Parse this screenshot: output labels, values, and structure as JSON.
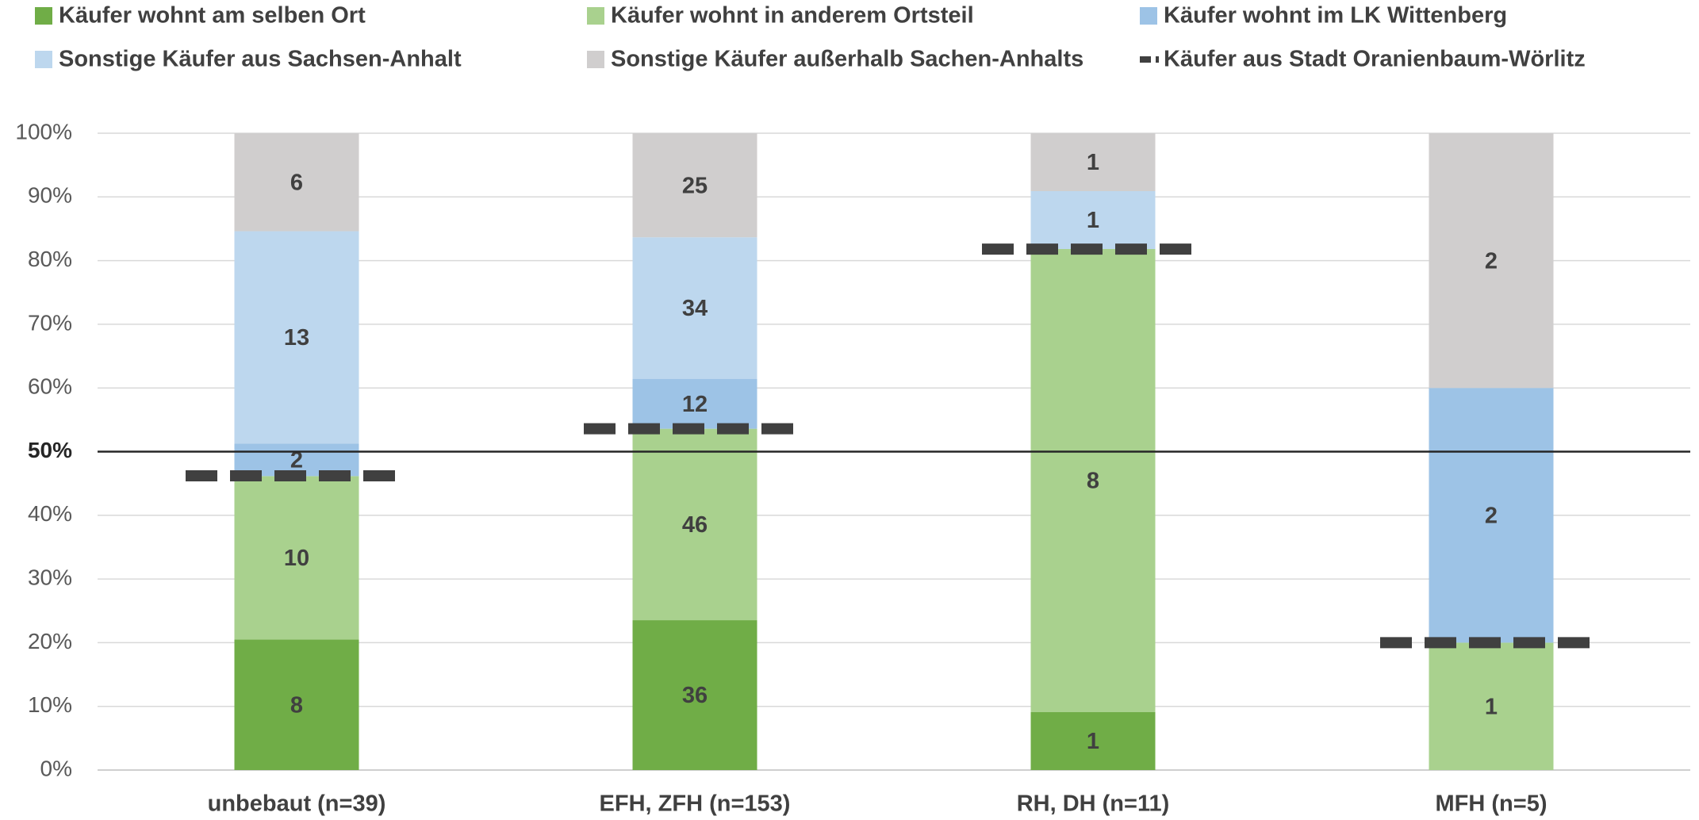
{
  "chart_data": {
    "type": "bar",
    "stack": "percent",
    "categories": [
      "unbebaut (n=39)",
      "EFH, ZFH (n=153)",
      "RH, DH (n=11)",
      "MFH (n=5)"
    ],
    "series": [
      {
        "name": "Käufer wohnt am selben Ort",
        "color": "#70ad47",
        "values": [
          8,
          36,
          1,
          null
        ]
      },
      {
        "name": "Käufer wohnt in anderem Ortsteil",
        "color": "#a9d18e",
        "values": [
          10,
          46,
          8,
          1
        ]
      },
      {
        "name": "Käufer wohnt im LK Wittenberg",
        "color": "#9dc3e6",
        "values": [
          2,
          12,
          null,
          2
        ]
      },
      {
        "name": "Sonstige Käufer aus Sachsen-Anhalt",
        "color": "#bdd7ee",
        "values": [
          13,
          34,
          1,
          null
        ]
      },
      {
        "name": "Sonstige Käufer außerhalb Sachen-Anhalts",
        "color": "#d0cece",
        "values": [
          6,
          25,
          1,
          2
        ]
      }
    ],
    "markers": {
      "name": "Käufer aus Stadt Oranienbaum-Wörlitz",
      "color": "#404040",
      "values": [
        46.2,
        53.6,
        81.8,
        20
      ]
    },
    "ylim": [
      0,
      100
    ],
    "yticks": [
      {
        "value": 0,
        "label": "0%"
      },
      {
        "value": 10,
        "label": "10%"
      },
      {
        "value": 20,
        "label": "20%"
      },
      {
        "value": 30,
        "label": "30%"
      },
      {
        "value": 40,
        "label": "40%"
      },
      {
        "value": 50,
        "label": "50%"
      },
      {
        "value": 60,
        "label": "60%"
      },
      {
        "value": 70,
        "label": "70%"
      },
      {
        "value": 80,
        "label": "80%"
      },
      {
        "value": 90,
        "label": "90%"
      },
      {
        "value": 100,
        "label": "100%"
      }
    ],
    "reference_line": 50,
    "grid": true,
    "legend": "top"
  }
}
